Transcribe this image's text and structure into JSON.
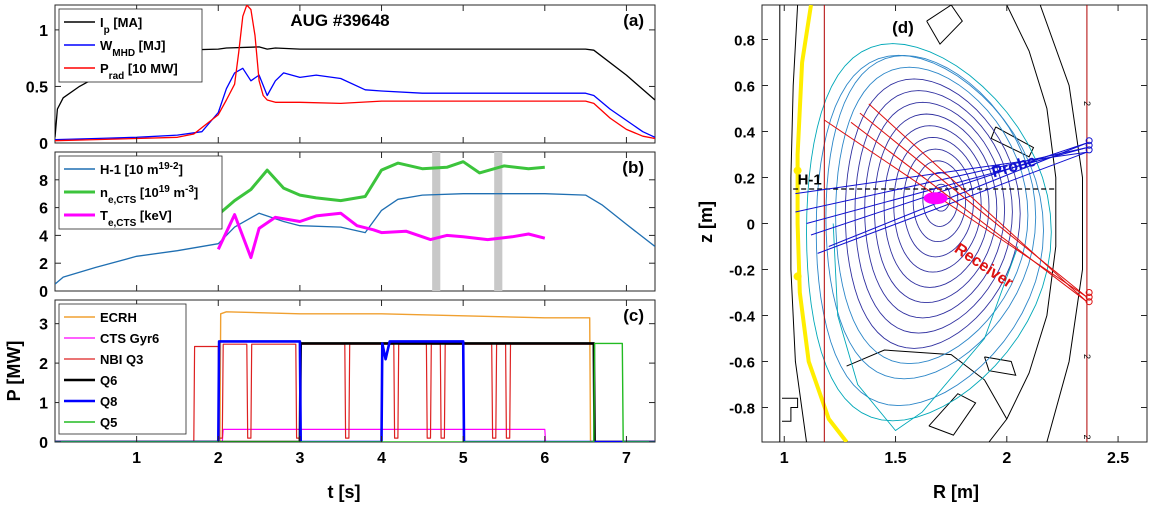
{
  "chart_data": [
    {
      "panel": "(a)",
      "type": "line",
      "title": "AUG #39648",
      "xlim": [
        0,
        7.35
      ],
      "ylim": [
        0,
        1.22
      ],
      "yticks": [
        "0",
        "0.5",
        "1"
      ],
      "legend": {
        "placement": "top-left",
        "entries": [
          {
            "base": "I",
            "sub": "p",
            "rest": " [MA]"
          },
          {
            "base": "W",
            "sub": "MHD",
            "rest": " [MJ]"
          },
          {
            "base": "P",
            "sub": "rad",
            "rest": " [10 MW]"
          }
        ]
      },
      "series": [
        {
          "name": "Ip [MA]",
          "color": "#000000",
          "x": [
            0,
            0.03,
            0.1,
            0.3,
            0.6,
            1.0,
            1.5,
            2.0,
            2.1,
            2.5,
            2.6,
            2.7,
            3.0,
            4.0,
            5.0,
            6.0,
            6.5,
            6.6,
            7.0,
            7.35
          ],
          "y": [
            0.05,
            0.3,
            0.4,
            0.5,
            0.62,
            0.75,
            0.82,
            0.83,
            0.84,
            0.85,
            0.83,
            0.84,
            0.83,
            0.83,
            0.83,
            0.83,
            0.83,
            0.82,
            0.6,
            0.38
          ]
        },
        {
          "name": "WMHD [MJ]",
          "color": "#0000ff",
          "x": [
            0,
            0.5,
            1.0,
            1.5,
            1.8,
            2.0,
            2.1,
            2.2,
            2.3,
            2.4,
            2.5,
            2.6,
            2.7,
            2.8,
            3.0,
            3.2,
            3.5,
            3.8,
            4.0,
            4.5,
            5.0,
            5.5,
            6.0,
            6.5,
            6.6,
            6.8,
            7.0,
            7.2,
            7.35
          ],
          "y": [
            0.03,
            0.04,
            0.05,
            0.07,
            0.1,
            0.27,
            0.48,
            0.62,
            0.66,
            0.55,
            0.6,
            0.42,
            0.55,
            0.62,
            0.58,
            0.6,
            0.57,
            0.47,
            0.46,
            0.44,
            0.44,
            0.44,
            0.44,
            0.44,
            0.42,
            0.3,
            0.2,
            0.1,
            0.05
          ]
        },
        {
          "name": "Prad [10 MW]",
          "color": "#ff0000",
          "x": [
            0,
            0.5,
            1.0,
            1.5,
            1.7,
            2.0,
            2.1,
            2.2,
            2.25,
            2.3,
            2.35,
            2.4,
            2.45,
            2.5,
            2.55,
            2.6,
            2.7,
            3.0,
            3.5,
            4.0,
            5.0,
            6.0,
            6.5,
            6.6,
            6.8,
            7.0,
            7.2,
            7.35
          ],
          "y": [
            0.02,
            0.03,
            0.04,
            0.05,
            0.08,
            0.25,
            0.38,
            0.52,
            0.8,
            1.12,
            1.22,
            1.18,
            0.95,
            0.55,
            0.42,
            0.38,
            0.36,
            0.36,
            0.35,
            0.37,
            0.37,
            0.37,
            0.37,
            0.35,
            0.22,
            0.12,
            0.06,
            0.04
          ]
        }
      ]
    },
    {
      "panel": "(b)",
      "type": "line",
      "xlim": [
        0,
        7.35
      ],
      "ylim": [
        0,
        10
      ],
      "yticks": [
        "0",
        "2",
        "4",
        "6",
        "8"
      ],
      "shaded_x_ranges": [
        [
          4.62,
          4.72
        ],
        [
          5.38,
          5.48
        ]
      ],
      "legend": {
        "placement": "top-left",
        "entries": [
          {
            "base": "H-1 [10",
            "sup": "19",
            "rest": " m",
            "sup2": "-2",
            "tail": "]"
          },
          {
            "base": "n",
            "sub": "e,CTS",
            "rest": " [10",
            "sup": "19",
            "rest2": " m",
            "sup2": "-3",
            "tail": "]"
          },
          {
            "base": "T",
            "sub": "e,CTS",
            "rest": " [keV]"
          }
        ]
      },
      "series": [
        {
          "name": "H-1 [10^19 m^-2]",
          "color": "#1f6fb2",
          "x": [
            0,
            0.1,
            0.5,
            1.0,
            1.5,
            2.0,
            2.2,
            2.5,
            2.8,
            3.0,
            3.5,
            3.8,
            4.0,
            4.2,
            4.5,
            5.0,
            5.5,
            6.0,
            6.5,
            6.7,
            7.0,
            7.35
          ],
          "y": [
            0.5,
            1.0,
            1.7,
            2.5,
            2.9,
            3.4,
            4.6,
            5.6,
            5.0,
            4.7,
            4.6,
            4.2,
            5.8,
            6.6,
            6.9,
            7.0,
            7.0,
            7.0,
            6.9,
            6.2,
            4.8,
            3.2
          ]
        },
        {
          "name": "ne,CTS [10^19 m^-3]",
          "color": "#3cc43c",
          "x": [
            2.0,
            2.2,
            2.4,
            2.6,
            2.8,
            3.0,
            3.2,
            3.5,
            3.8,
            4.0,
            4.2,
            4.5,
            4.8,
            5.0,
            5.2,
            5.5,
            5.8,
            6.0
          ],
          "y": [
            5.5,
            6.5,
            7.3,
            8.7,
            7.4,
            6.9,
            6.7,
            6.5,
            6.8,
            8.7,
            9.2,
            8.8,
            8.9,
            9.3,
            8.5,
            9.0,
            8.8,
            8.9
          ]
        },
        {
          "name": "Te,CTS [keV]",
          "color": "#ff00ff",
          "x": [
            2.0,
            2.2,
            2.4,
            2.5,
            2.7,
            3.0,
            3.2,
            3.5,
            3.7,
            3.9,
            4.0,
            4.3,
            4.6,
            4.8,
            5.0,
            5.3,
            5.6,
            5.8,
            6.0
          ],
          "y": [
            3.0,
            5.5,
            2.4,
            4.5,
            5.3,
            5.0,
            5.4,
            5.6,
            4.7,
            4.4,
            4.2,
            4.3,
            3.7,
            4.0,
            3.9,
            3.7,
            3.9,
            4.1,
            3.8
          ]
        }
      ]
    },
    {
      "panel": "(c)",
      "type": "line",
      "xlim": [
        0,
        7.35
      ],
      "ylim": [
        0,
        3.6
      ],
      "ylabel": "P [MW]",
      "xlabel": "t [s]",
      "yticks": [
        "0",
        "1",
        "2",
        "3"
      ],
      "xticks": [
        "1",
        "2",
        "3",
        "4",
        "5",
        "6",
        "7"
      ],
      "legend": {
        "placement": "top-left",
        "entries": [
          {
            "base": "ECRH"
          },
          {
            "base": "CTS Gyr6"
          },
          {
            "base": "NBI Q3"
          },
          {
            "base": "Q6"
          },
          {
            "base": "Q8"
          },
          {
            "base": "Q5"
          }
        ]
      },
      "series": [
        {
          "name": "ECRH",
          "color": "#f0a030",
          "width": 1.4,
          "x": [
            0,
            2.02,
            2.03,
            2.1,
            3.0,
            4.0,
            5.0,
            6.0,
            6.55,
            6.56,
            7.35
          ],
          "y": [
            0.02,
            0.02,
            3.25,
            3.3,
            3.25,
            3.25,
            3.2,
            3.15,
            3.15,
            0.02,
            0.02
          ]
        },
        {
          "name": "CTS Gyr6",
          "color": "#ff00ff",
          "width": 1.2,
          "x": [
            0,
            2.05,
            2.06,
            6.0,
            6.01,
            7.35
          ],
          "y": [
            0,
            0,
            0.32,
            0.32,
            0,
            0
          ]
        },
        {
          "name": "NBI Q3",
          "color": "#dd2020",
          "width": 1.2,
          "x": [
            0,
            1.7,
            1.71,
            2.0,
            2.01,
            2.05,
            2.06,
            2.35,
            2.36,
            2.4,
            2.41,
            2.95,
            2.96,
            3.0,
            3.01,
            3.55,
            3.56,
            3.6,
            3.61,
            4.15,
            4.16,
            4.2,
            4.21,
            4.55,
            4.56,
            4.6,
            4.61,
            4.72,
            4.73,
            4.77,
            4.78,
            5.35,
            5.36,
            5.4,
            5.41,
            5.52,
            5.53,
            5.57,
            5.58,
            6.6,
            6.61,
            7.35
          ],
          "y": [
            0,
            0,
            2.42,
            2.42,
            0.1,
            0.1,
            2.48,
            2.48,
            0.1,
            0.1,
            2.48,
            2.48,
            0.1,
            0.1,
            2.48,
            2.48,
            0.1,
            0.1,
            2.48,
            2.48,
            0.1,
            0.1,
            2.48,
            2.48,
            0.1,
            0.1,
            2.48,
            2.48,
            0.1,
            0.1,
            2.48,
            2.48,
            0.1,
            0.1,
            2.48,
            2.48,
            0.1,
            0.1,
            2.48,
            2.48,
            0,
            0
          ]
        },
        {
          "name": "Q6",
          "color": "#000000",
          "width": 2.6,
          "x": [
            0,
            3.0,
            3.01,
            6.6,
            6.61,
            7.35
          ],
          "y": [
            0,
            0,
            2.5,
            2.5,
            0,
            0
          ]
        },
        {
          "name": "Q8",
          "color": "#0000ff",
          "width": 2.6,
          "x": [
            0,
            2.0,
            2.01,
            3.0,
            3.01,
            4.0,
            4.01,
            4.05,
            4.1,
            5.0,
            5.01,
            6.6,
            6.61,
            7.35
          ],
          "y": [
            0,
            0,
            2.55,
            2.55,
            0,
            0,
            2.5,
            2.1,
            2.55,
            2.55,
            0,
            0,
            0,
            0
          ]
        },
        {
          "name": "Q5",
          "color": "#22bb22",
          "width": 1.4,
          "x": [
            0,
            6.6,
            6.61,
            6.95,
            6.96,
            7.35
          ],
          "y": [
            0,
            0,
            2.5,
            2.5,
            0,
            0
          ]
        }
      ]
    },
    {
      "panel": "(d)",
      "type": "diagram",
      "xlim": [
        0.9,
        2.63
      ],
      "ylim": [
        -0.95,
        0.95
      ],
      "xlabel": "R [m]",
      "ylabel": "z [m]",
      "xticks": [
        "1",
        "1.5",
        "2",
        "2.5"
      ],
      "yticks": [
        "0.8",
        "0.6",
        "0.4",
        "0.2",
        "0",
        "-0.2",
        "-0.4",
        "-0.6",
        "-0.8"
      ],
      "labels": {
        "h1": "H-1",
        "probe": "Probe",
        "receiver": "Receiver",
        "coil": "2"
      },
      "magnetic_axis": [
        1.7,
        0.12
      ],
      "h1_chord_z": 0.15,
      "probe_origin": [
        2.36,
        0.33
      ],
      "receiver_origin": [
        2.36,
        -0.34
      ],
      "colors": {
        "probe": "#1010d0",
        "receiver": "#dd1010",
        "separatrix": "#00a8b8",
        "flux": "#3030a0",
        "volume": "#ff00ff",
        "wall": "#ffee00"
      }
    }
  ]
}
